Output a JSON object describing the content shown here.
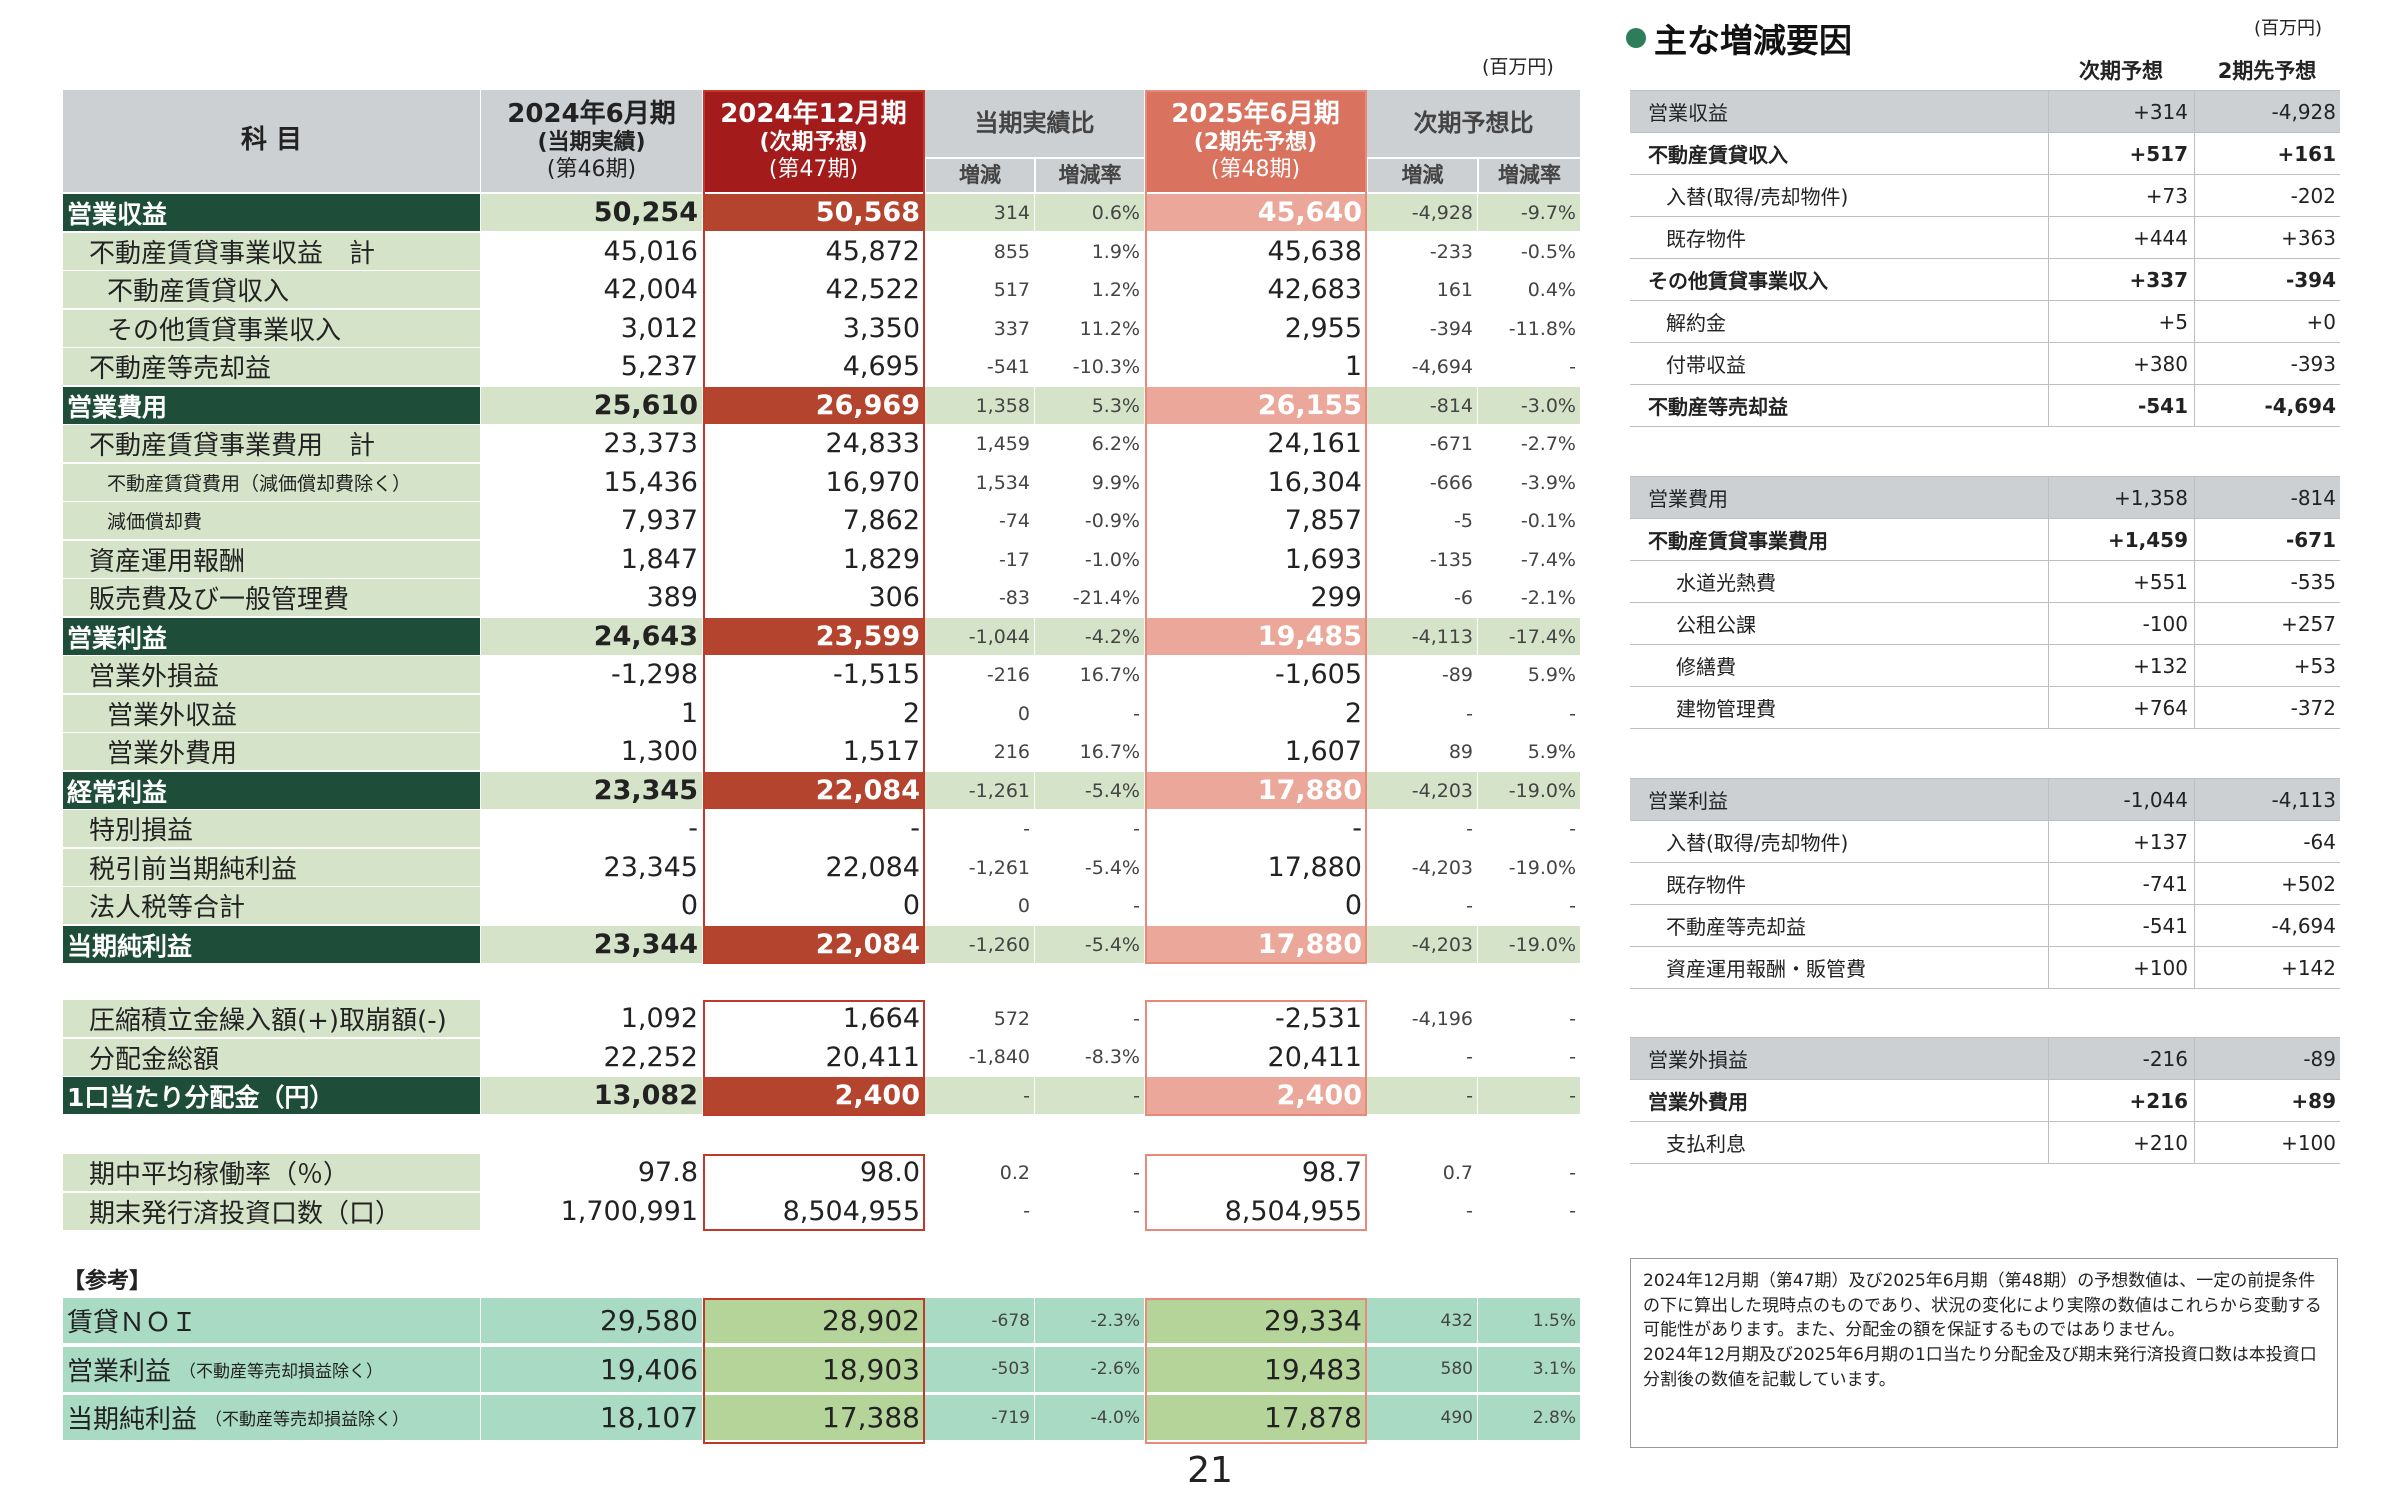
{
  "unit_label": "(百万円)",
  "page_number": "21",
  "colors": {
    "dark_green": "#1e4d3a",
    "light_green": "#d5e3c9",
    "dark_red": "#a31b1b",
    "mid_red": "#b5442f",
    "salmon": "#d9735f",
    "light_salmon": "#eba89a",
    "gray": "#cdd0d3",
    "teal": "#a9dac4",
    "olive": "#b5d49a"
  },
  "header": {
    "subject": "科 目",
    "col_2024_06": [
      "2024年6月期",
      "(当期実績)",
      "(第46期)"
    ],
    "col_2024_12": [
      "2024年12月期",
      "(次期予想)",
      "(第47期)"
    ],
    "group_current": "当期実績比",
    "col_2025_06": [
      "2025年6月期",
      "(2期先予想)",
      "(第48期)"
    ],
    "group_next": "次期予想比",
    "sub_diff": "増減",
    "sub_rate": "増減率"
  },
  "rows": [
    {
      "label": "営業収益",
      "indent": 0,
      "type": "major",
      "v1": "50,254",
      "v2": "50,568",
      "d1": "314",
      "r1": "0.6%",
      "v3": "45,640",
      "d2": "-4,928",
      "r2": "-9.7%"
    },
    {
      "label": "不動産賃貸事業収益　計",
      "indent": 1,
      "type": "normal",
      "v1": "45,016",
      "v2": "45,872",
      "d1": "855",
      "r1": "1.9%",
      "v3": "45,638",
      "d2": "-233",
      "r2": "-0.5%"
    },
    {
      "label": "不動産賃貸収入",
      "indent": 2,
      "type": "normal",
      "v1": "42,004",
      "v2": "42,522",
      "d1": "517",
      "r1": "1.2%",
      "v3": "42,683",
      "d2": "161",
      "r2": "0.4%"
    },
    {
      "label": "その他賃貸事業収入",
      "indent": 2,
      "type": "normal",
      "v1": "3,012",
      "v2": "3,350",
      "d1": "337",
      "r1": "11.2%",
      "v3": "2,955",
      "d2": "-394",
      "r2": "-11.8%"
    },
    {
      "label": "不動産等売却益",
      "indent": 1,
      "type": "normal",
      "v1": "5,237",
      "v2": "4,695",
      "d1": "-541",
      "r1": "-10.3%",
      "v3": "1",
      "d2": "-4,694",
      "r2": "-"
    },
    {
      "label": "営業費用",
      "indent": 0,
      "type": "major",
      "v1": "25,610",
      "v2": "26,969",
      "d1": "1,358",
      "r1": "5.3%",
      "v3": "26,155",
      "d2": "-814",
      "r2": "-3.0%"
    },
    {
      "label": "不動産賃貸事業費用　計",
      "indent": 1,
      "type": "normal",
      "v1": "23,373",
      "v2": "24,833",
      "d1": "1,459",
      "r1": "6.2%",
      "v3": "24,161",
      "d2": "-671",
      "r2": "-2.7%"
    },
    {
      "label": "不動産賃貸費用（減価償却費除く）",
      "indent": 2,
      "type": "small",
      "v1": "15,436",
      "v2": "16,970",
      "d1": "1,534",
      "r1": "9.9%",
      "v3": "16,304",
      "d2": "-666",
      "r2": "-3.9%"
    },
    {
      "label": "減価償却費",
      "indent": 2,
      "type": "small",
      "v1": "7,937",
      "v2": "7,862",
      "d1": "-74",
      "r1": "-0.9%",
      "v3": "7,857",
      "d2": "-5",
      "r2": "-0.1%"
    },
    {
      "label": "資産運用報酬",
      "indent": 1,
      "type": "normal",
      "v1": "1,847",
      "v2": "1,829",
      "d1": "-17",
      "r1": "-1.0%",
      "v3": "1,693",
      "d2": "-135",
      "r2": "-7.4%"
    },
    {
      "label": "販売費及び一般管理費",
      "indent": 1,
      "type": "normal",
      "v1": "389",
      "v2": "306",
      "d1": "-83",
      "r1": "-21.4%",
      "v3": "299",
      "d2": "-6",
      "r2": "-2.1%"
    },
    {
      "label": "営業利益",
      "indent": 0,
      "type": "major",
      "v1": "24,643",
      "v2": "23,599",
      "d1": "-1,044",
      "r1": "-4.2%",
      "v3": "19,485",
      "d2": "-4,113",
      "r2": "-17.4%"
    },
    {
      "label": "営業外損益",
      "indent": 1,
      "type": "normal",
      "v1": "-1,298",
      "v2": "-1,515",
      "d1": "-216",
      "r1": "16.7%",
      "v3": "-1,605",
      "d2": "-89",
      "r2": "5.9%"
    },
    {
      "label": "営業外収益",
      "indent": 2,
      "type": "normal",
      "v1": "1",
      "v2": "2",
      "d1": "0",
      "r1": "-",
      "v3": "2",
      "d2": "-",
      "r2": "-"
    },
    {
      "label": "営業外費用",
      "indent": 2,
      "type": "normal",
      "v1": "1,300",
      "v2": "1,517",
      "d1": "216",
      "r1": "16.7%",
      "v3": "1,607",
      "d2": "89",
      "r2": "5.9%"
    },
    {
      "label": "経常利益",
      "indent": 0,
      "type": "major",
      "v1": "23,345",
      "v2": "22,084",
      "d1": "-1,261",
      "r1": "-5.4%",
      "v3": "17,880",
      "d2": "-4,203",
      "r2": "-19.0%"
    },
    {
      "label": "特別損益",
      "indent": 1,
      "type": "normal",
      "v1": "-",
      "v2": "-",
      "d1": "-",
      "r1": "-",
      "v3": "-",
      "d2": "-",
      "r2": "-"
    },
    {
      "label": "税引前当期純利益",
      "indent": 1,
      "type": "normal",
      "v1": "23,345",
      "v2": "22,084",
      "d1": "-1,261",
      "r1": "-5.4%",
      "v3": "17,880",
      "d2": "-4,203",
      "r2": "-19.0%"
    },
    {
      "label": "法人税等合計",
      "indent": 1,
      "type": "normal",
      "v1": "0",
      "v2": "0",
      "d1": "0",
      "r1": "-",
      "v3": "0",
      "d2": "-",
      "r2": "-"
    },
    {
      "label": "当期純利益",
      "indent": 0,
      "type": "major",
      "v1": "23,344",
      "v2": "22,084",
      "d1": "-1,260",
      "r1": "-5.4%",
      "v3": "17,880",
      "d2": "-4,203",
      "r2": "-19.0%"
    }
  ],
  "dist_rows": [
    {
      "label": "圧縮積立金繰入額(+)取崩額(-)",
      "type": "normal",
      "v1": "1,092",
      "v2": "1,664",
      "d1": "572",
      "r1": "-",
      "v3": "-2,531",
      "d2": "-4,196",
      "r2": "-"
    },
    {
      "label": "分配金総額",
      "type": "normal",
      "v1": "22,252",
      "v2": "20,411",
      "d1": "-1,840",
      "r1": "-8.3%",
      "v3": "20,411",
      "d2": "-",
      "r2": "-"
    },
    {
      "label": "1口当たり分配金（円）",
      "type": "major",
      "v1": "13,082",
      "v2": "2,400",
      "d1": "-",
      "r1": "-",
      "v3": "2,400",
      "d2": "-",
      "r2": "-"
    }
  ],
  "kpi_rows": [
    {
      "label": "期中平均稼働率（％）",
      "v1": "97.8",
      "v2": "98.0",
      "d1": "0.2",
      "r1": "-",
      "v3": "98.7",
      "d2": "0.7",
      "r2": "-"
    },
    {
      "label": "期末発行済投資口数（口）",
      "v1": "1,700,991",
      "v2": "8,504,955",
      "d1": "-",
      "r1": "-",
      "v3": "8,504,955",
      "d2": "-",
      "r2": "-"
    }
  ],
  "reference_label": "【参考】",
  "ref_rows": [
    {
      "label": "賃貸ＮＯＩ",
      "note": "",
      "v1": "29,580",
      "v2": "28,902",
      "d1": "-678",
      "r1": "-2.3%",
      "v3": "29,334",
      "d2": "432",
      "r2": "1.5%"
    },
    {
      "label": "営業利益",
      "note": "（不動産等売却損益除く）",
      "v1": "19,406",
      "v2": "18,903",
      "d1": "-503",
      "r1": "-2.6%",
      "v3": "19,483",
      "d2": "580",
      "r2": "3.1%"
    },
    {
      "label": "当期純利益",
      "note": "（不動産等売却損益除く）",
      "v1": "18,107",
      "v2": "17,388",
      "d1": "-719",
      "r1": "-4.0%",
      "v3": "17,878",
      "d2": "490",
      "r2": "2.8%"
    }
  ],
  "right_panel": {
    "title": "主な増減要因",
    "unit": "(百万円)",
    "col_next": "次期予想",
    "col_two": "2期先予想",
    "groups": [
      [
        {
          "label": "営業収益",
          "style": "gray",
          "a": "+314",
          "b": "-4,928"
        },
        {
          "label": "不動産賃貸収入",
          "style": "bold",
          "a": "+517",
          "b": "+161"
        },
        {
          "label": "入替(取得/売却物件)",
          "style": "sub",
          "a": "+73",
          "b": "-202"
        },
        {
          "label": "既存物件",
          "style": "sub",
          "a": "+444",
          "b": "+363"
        },
        {
          "label": "その他賃貸事業収入",
          "style": "bold",
          "a": "+337",
          "b": "-394"
        },
        {
          "label": "解約金",
          "style": "sub",
          "a": "+5",
          "b": "+0"
        },
        {
          "label": "付帯収益",
          "style": "sub",
          "a": "+380",
          "b": "-393"
        },
        {
          "label": "不動産等売却益",
          "style": "bold",
          "a": "-541",
          "b": "-4,694"
        }
      ],
      [
        {
          "label": "営業費用",
          "style": "gray",
          "a": "+1,358",
          "b": "-814"
        },
        {
          "label": "不動産賃貸事業費用",
          "style": "bold",
          "a": "+1,459",
          "b": "-671"
        },
        {
          "label": "水道光熱費",
          "style": "sub2",
          "a": "+551",
          "b": "-535"
        },
        {
          "label": "公租公課",
          "style": "sub2",
          "a": "-100",
          "b": "+257"
        },
        {
          "label": "修繕費",
          "style": "sub2",
          "a": "+132",
          "b": "+53"
        },
        {
          "label": "建物管理費",
          "style": "sub2",
          "a": "+764",
          "b": "-372"
        }
      ],
      [
        {
          "label": "営業利益",
          "style": "gray",
          "a": "-1,044",
          "b": "-4,113"
        },
        {
          "label": "入替(取得/売却物件)",
          "style": "sub",
          "a": "+137",
          "b": "-64"
        },
        {
          "label": "既存物件",
          "style": "sub",
          "a": "-741",
          "b": "+502"
        },
        {
          "label": "不動産等売却益",
          "style": "sub",
          "a": "-541",
          "b": "-4,694"
        },
        {
          "label": "資産運用報酬・販管費",
          "style": "sub",
          "a": "+100",
          "b": "+142"
        }
      ],
      [
        {
          "label": "営業外損益",
          "style": "gray",
          "a": "-216",
          "b": "-89"
        },
        {
          "label": "営業外費用",
          "style": "bold",
          "a": "+216",
          "b": "+89"
        },
        {
          "label": "支払利息",
          "style": "sub",
          "a": "+210",
          "b": "+100"
        }
      ]
    ]
  },
  "disclaimer": "2024年12月期（第47期）及び2025年6月期（第48期）の予想数値は、一定の前提条件の下に算出した現時点のものであり、状況の変化により実際の数値はこれらから変動する可能性があります。また、分配金の額を保証するものではありません。\n2024年12月期及び2025年6月期の1口当たり分配金及び期末発行済投資口数は本投資口分割後の数値を記載しています。"
}
